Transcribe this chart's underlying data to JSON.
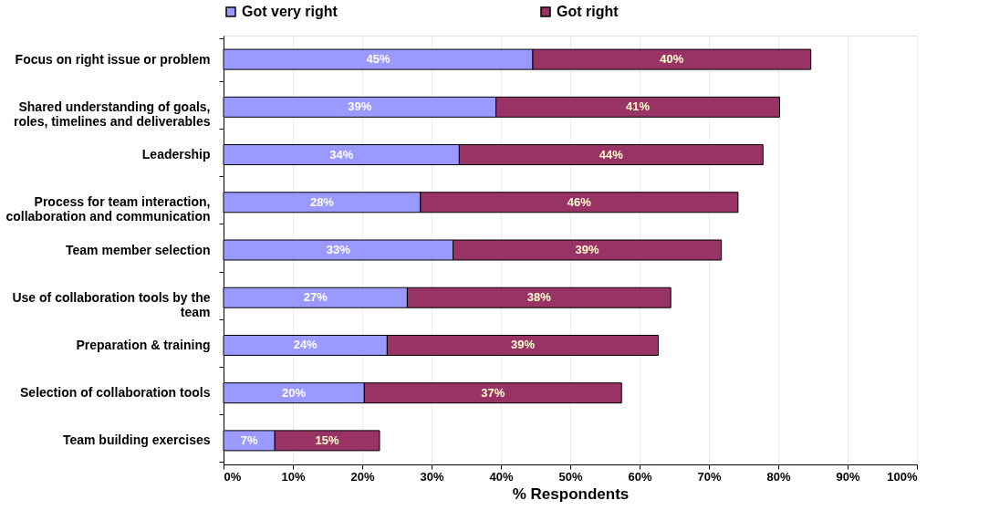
{
  "chart_data": {
    "type": "bar",
    "orientation": "horizontal",
    "stacked": true,
    "categories": [
      "Focus on right issue or problem",
      "Shared understanding of goals, roles, timelines and deliverables",
      "Leadership",
      "Process for team interaction, collaboration and communication",
      "Team member selection",
      "Use of collaboration tools by the team",
      "Preparation & training",
      "Selection of collaboration tools",
      "Team building exercises"
    ],
    "series": [
      {
        "name": "Got very right",
        "color": "#9999ff",
        "values": [
          44.6,
          39.3,
          34.0,
          28.4,
          33.1,
          26.5,
          23.6,
          20.3,
          7.4
        ],
        "value_labels": [
          "45%",
          "39%",
          "34%",
          "28%",
          "33%",
          "27%",
          "24%",
          "20%",
          "7%"
        ]
      },
      {
        "name": "Got right",
        "color": "#993366",
        "values": [
          40.1,
          40.9,
          43.8,
          45.8,
          38.7,
          38.0,
          39.1,
          37.1,
          15.1
        ],
        "value_labels": [
          "40%",
          "41%",
          "44%",
          "46%",
          "39%",
          "38%",
          "39%",
          "37%",
          "15%"
        ]
      }
    ],
    "xlabel": "% Respondents",
    "xlim": [
      0,
      100
    ],
    "xticks": [
      {
        "value": 0,
        "label": "0%"
      },
      {
        "value": 10,
        "label": "10%"
      },
      {
        "value": 20,
        "label": "20%"
      },
      {
        "value": 30,
        "label": "30%"
      },
      {
        "value": 40,
        "label": "40%"
      },
      {
        "value": 50,
        "label": "50%"
      },
      {
        "value": 60,
        "label": "60%"
      },
      {
        "value": 70,
        "label": "70%"
      },
      {
        "value": 80,
        "label": "80%"
      },
      {
        "value": 90,
        "label": "90%"
      },
      {
        "value": 100,
        "label": "100%"
      }
    ],
    "grid": "x",
    "legend": "top"
  }
}
